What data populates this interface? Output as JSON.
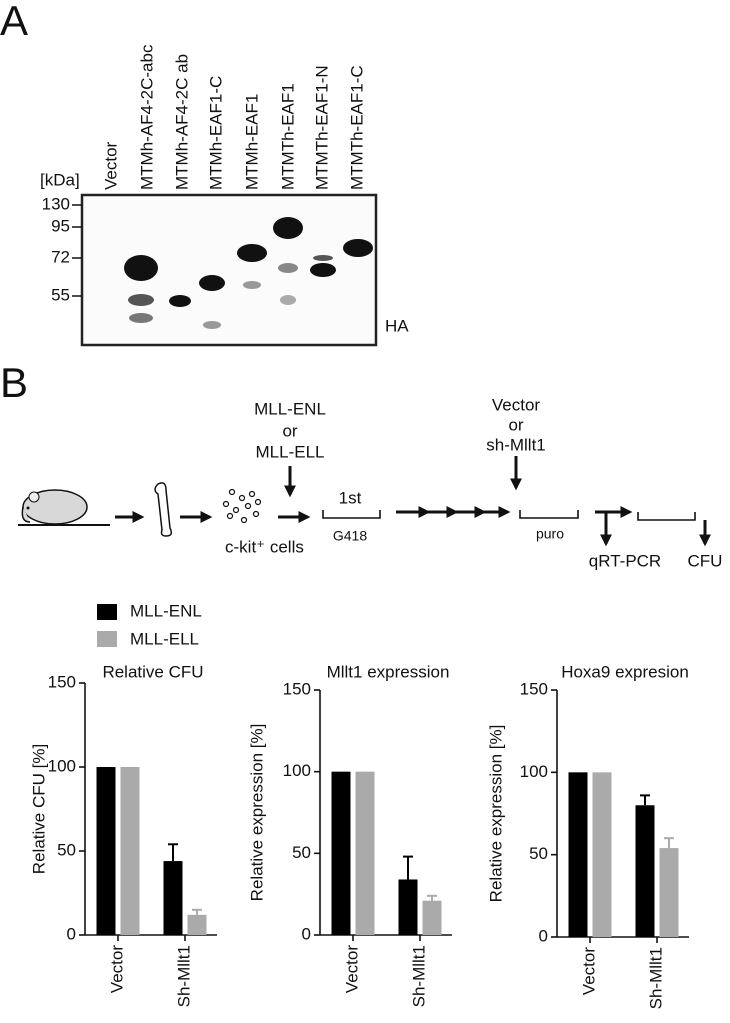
{
  "panels": {
    "a": "A",
    "b": "B"
  },
  "blot": {
    "lanes": [
      "Vector",
      "MTMh-AF4-2C-abc",
      "MTMh-AF4-2C ab",
      "MTMh-EAF1-C",
      "MTMh-EAF1",
      "MTMTh-EAF1",
      "MTMTh-EAF1-N",
      "MTMTh-EAF1-C"
    ],
    "unit": "[kDa]",
    "markers": [
      130,
      95,
      72,
      55
    ],
    "antibody": "HA"
  },
  "diagram": {
    "constructs": [
      "MLL-ENL",
      "or",
      "MLL-ELL"
    ],
    "shrna": [
      "Vector",
      "or",
      "sh-Mllt1"
    ],
    "cells": "c-kit⁺ cells",
    "selection1": "1st",
    "drug1": "G418",
    "drug2": "puro",
    "readout1": "qRT-PCR",
    "readout2": "CFU"
  },
  "chart_data": [
    {
      "type": "bar",
      "title": "Relative CFU",
      "ylabel": "Relative CFU [%]",
      "categories": [
        "Vector",
        "Sh-Mllt1"
      ],
      "series": [
        {
          "name": "MLL-ENL",
          "color": "#000000",
          "values": [
            100,
            44
          ],
          "errors": [
            0,
            10
          ]
        },
        {
          "name": "MLL-ELL",
          "color": "#aaaaaa",
          "values": [
            100,
            12
          ],
          "errors": [
            0,
            3
          ]
        }
      ],
      "ylim": [
        0,
        150
      ],
      "yticks": [
        0,
        50,
        100,
        150
      ]
    },
    {
      "type": "bar",
      "title": "Mllt1 expression",
      "ylabel": "Relative expression [%]",
      "categories": [
        "Vector",
        "Sh-Mllt1"
      ],
      "series": [
        {
          "name": "MLL-ENL",
          "color": "#000000",
          "values": [
            100,
            34
          ],
          "errors": [
            0,
            14
          ]
        },
        {
          "name": "MLL-ELL",
          "color": "#aaaaaa",
          "values": [
            100,
            21
          ],
          "errors": [
            0,
            3
          ]
        }
      ],
      "ylim": [
        0,
        150
      ],
      "yticks": [
        0,
        50,
        100,
        150
      ]
    },
    {
      "type": "bar",
      "title": "Hoxa9 expresion",
      "ylabel": "Relative expression [%]",
      "categories": [
        "Vector",
        "Sh-Mllt1"
      ],
      "series": [
        {
          "name": "MLL-ENL",
          "color": "#000000",
          "values": [
            100,
            80
          ],
          "errors": [
            0,
            6
          ]
        },
        {
          "name": "MLL-ELL",
          "color": "#aaaaaa",
          "values": [
            100,
            54
          ],
          "errors": [
            0,
            6
          ]
        }
      ],
      "ylim": [
        0,
        150
      ],
      "yticks": [
        0,
        50,
        100,
        150
      ]
    }
  ]
}
